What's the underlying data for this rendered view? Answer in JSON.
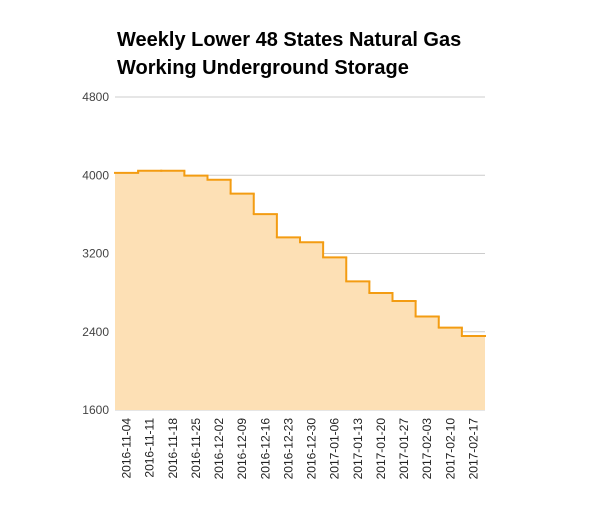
{
  "chart_data": {
    "type": "area",
    "title_lines": [
      "Weekly Lower 48 States Natural Gas",
      "Working Underground Storage"
    ],
    "xlabel": "",
    "ylabel": "",
    "ylim": [
      1600,
      4800
    ],
    "yticks": [
      1600,
      2400,
      3200,
      4000,
      4800
    ],
    "grid": true,
    "step": true,
    "categories": [
      "2016-11-04",
      "2016-11-11",
      "2016-11-18",
      "2016-11-25",
      "2016-12-02",
      "2016-12-09",
      "2016-12-16",
      "2016-12-23",
      "2016-12-30",
      "2017-01-06",
      "2017-01-13",
      "2017-01-20",
      "2017-01-27",
      "2017-02-03",
      "2017-02-10",
      "2017-02-17"
    ],
    "values": [
      4024,
      4046,
      4046,
      3996,
      3954,
      3812,
      3603,
      3365,
      3315,
      3160,
      2915,
      2796,
      2715,
      2556,
      2442,
      2356
    ],
    "colors": {
      "fill": "#fde0b5",
      "line": "#f39c12",
      "grid": "#cccccc"
    }
  }
}
